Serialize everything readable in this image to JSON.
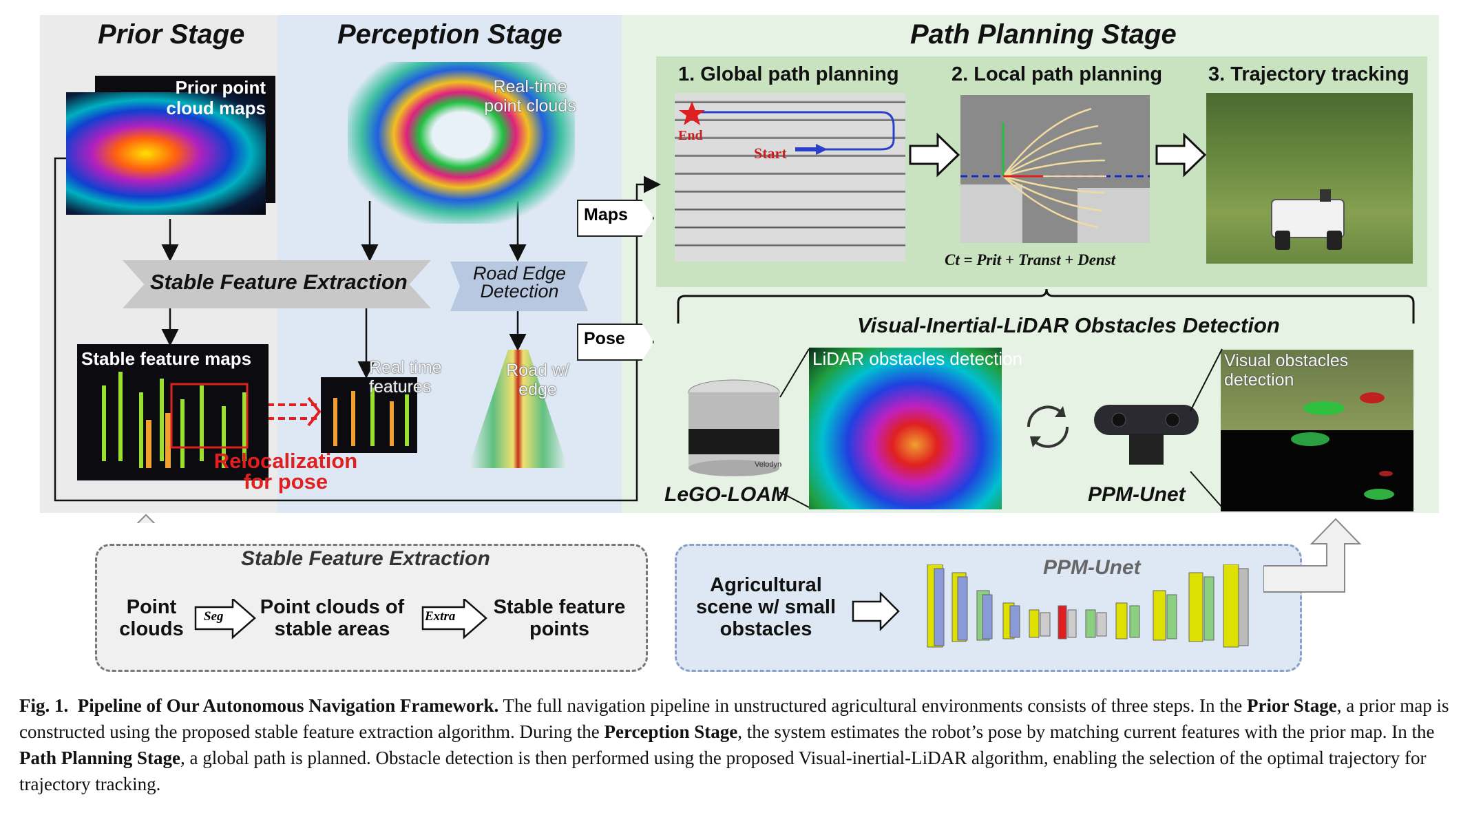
{
  "stages": {
    "prior": "Prior Stage",
    "perception": "Perception Stage",
    "path_planning": "Path Planning Stage"
  },
  "prior": {
    "map_label": "Prior point cloud maps",
    "sfe_label": "Stable Feature Extraction",
    "stable_maps_label": "Stable feature maps",
    "reloc_label": "Relocalization for pose"
  },
  "perception": {
    "realtime_label": "Real-time point clouds",
    "road_edge_label": "Road Edge Detection",
    "realtime_features_label": "Real time features",
    "road_label": "Road w/ edge"
  },
  "connectors": {
    "maps": "Maps",
    "pose": "Pose"
  },
  "planning": {
    "global_title": "1. Global path planning",
    "local_title": "2. Local path planning",
    "tracking_title": "3. Trajectory tracking",
    "end_label": "End",
    "start_label": "Start",
    "cost_formula": "Ct = Prit + Transt + Denst"
  },
  "obstacles": {
    "title": "Visual-Inertial-LiDAR Obstacles Detection",
    "lidar_label": "LiDAR obstacles detection",
    "visual_label": "Visual obstacles detection",
    "lego_loam": "LeGO-LOAM",
    "ppm_unet": "PPM-Unet",
    "velodyne": "Velodyne"
  },
  "bottom_left": {
    "title": "Stable Feature Extraction",
    "step1": "Point clouds",
    "op1": "Seg",
    "step2": "Point clouds of stable areas",
    "op2": "Extra",
    "step3": "Stable feature points"
  },
  "bottom_right": {
    "input": "Agricultural scene w/ small obstacles",
    "net_title": "PPM-Unet"
  },
  "caption": {
    "fig": "Fig. 1.",
    "title": "Pipeline of Our Autonomous Navigation Framework.",
    "t1": " The full navigation pipeline in unstructured agricultural environments consists of three steps. In the ",
    "b1": "Prior Stage",
    "t2": ", a prior map is constructed using the proposed stable feature extraction algorithm. During the ",
    "b2": "Perception Stage",
    "t3": ", the system estimates the robot’s pose by matching current features with the prior map. In the ",
    "b3": "Path Planning Stage",
    "t4": ", a global path is planned. Obstacle detection is then performed using the proposed Visual-inertial-LiDAR algorithm, enabling the selection of the optimal trajectory for trajectory tracking."
  },
  "colors": {
    "prior_bg": "#ebebeb",
    "perception_bg": "#dde8f4",
    "planning_bg": "#e6f2e3",
    "reloc_red": "#e02020"
  }
}
